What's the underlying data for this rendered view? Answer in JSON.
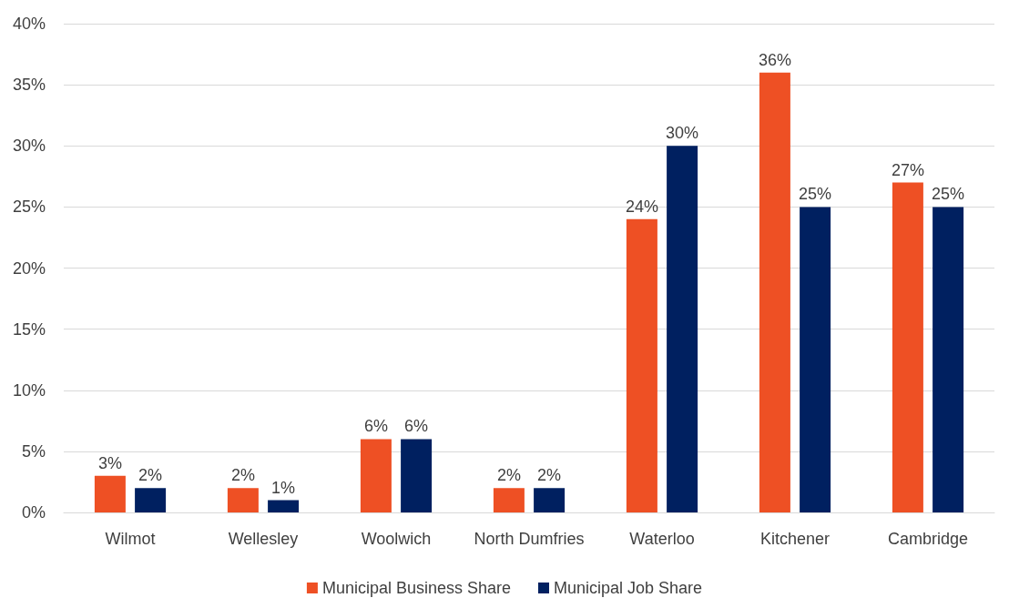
{
  "chart_data": {
    "type": "bar",
    "categories": [
      "Wilmot",
      "Wellesley",
      "Woolwich",
      "North Dumfries",
      "Waterloo",
      "Kitchener",
      "Cambridge"
    ],
    "series": [
      {
        "name": "Municipal Business Share",
        "color": "#ee5024",
        "values": [
          3,
          2,
          6,
          2,
          24,
          36,
          27
        ],
        "value_labels": [
          "3%",
          "2%",
          "6%",
          "2%",
          "24%",
          "36%",
          "27%"
        ]
      },
      {
        "name": "Municipal Job Share",
        "color": "#002060",
        "values": [
          2,
          1,
          6,
          2,
          30,
          25,
          25
        ],
        "value_labels": [
          "2%",
          "1%",
          "6%",
          "2%",
          "30%",
          "25%",
          "25%"
        ]
      }
    ],
    "ylim": [
      0,
      40
    ],
    "yticks": [
      {
        "value": 0,
        "label": "0%"
      },
      {
        "value": 5,
        "label": "5%"
      },
      {
        "value": 10,
        "label": "10%"
      },
      {
        "value": 15,
        "label": "15%"
      },
      {
        "value": 20,
        "label": "20%"
      },
      {
        "value": 25,
        "label": "25%"
      },
      {
        "value": 30,
        "label": "30%"
      },
      {
        "value": 35,
        "label": "35%"
      },
      {
        "value": 40,
        "label": "40%"
      }
    ],
    "grid": "y",
    "legend": "bottom"
  }
}
